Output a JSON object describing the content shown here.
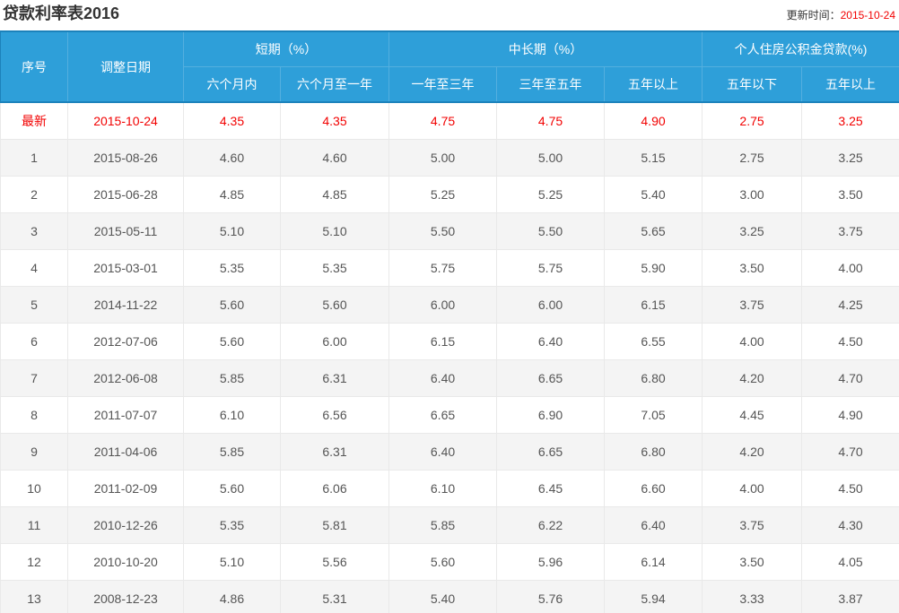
{
  "page": {
    "title": "贷款利率表2016",
    "update_label": "更新时间：",
    "update_date": "2015-10-24"
  },
  "table": {
    "columns": {
      "seq": "序号",
      "date": "调整日期",
      "group_short": "短期（%）",
      "group_mid": "中长期（%）",
      "group_fund": "个人住房公积金贷款(%)",
      "sub": [
        "六个月内",
        "六个月至一年",
        "一年至三年",
        "三年至五年",
        "五年以上",
        "五年以下",
        "五年以上"
      ]
    },
    "rows": [
      {
        "seq": "最新",
        "date": "2015-10-24",
        "values": [
          "4.35",
          "4.35",
          "4.75",
          "4.75",
          "4.90",
          "2.75",
          "3.25"
        ],
        "highlight": true
      },
      {
        "seq": "1",
        "date": "2015-08-26",
        "values": [
          "4.60",
          "4.60",
          "5.00",
          "5.00",
          "5.15",
          "2.75",
          "3.25"
        ]
      },
      {
        "seq": "2",
        "date": "2015-06-28",
        "values": [
          "4.85",
          "4.85",
          "5.25",
          "5.25",
          "5.40",
          "3.00",
          "3.50"
        ]
      },
      {
        "seq": "3",
        "date": "2015-05-11",
        "values": [
          "5.10",
          "5.10",
          "5.50",
          "5.50",
          "5.65",
          "3.25",
          "3.75"
        ]
      },
      {
        "seq": "4",
        "date": "2015-03-01",
        "values": [
          "5.35",
          "5.35",
          "5.75",
          "5.75",
          "5.90",
          "3.50",
          "4.00"
        ]
      },
      {
        "seq": "5",
        "date": "2014-11-22",
        "values": [
          "5.60",
          "5.60",
          "6.00",
          "6.00",
          "6.15",
          "3.75",
          "4.25"
        ]
      },
      {
        "seq": "6",
        "date": "2012-07-06",
        "values": [
          "5.60",
          "6.00",
          "6.15",
          "6.40",
          "6.55",
          "4.00",
          "4.50"
        ]
      },
      {
        "seq": "7",
        "date": "2012-06-08",
        "values": [
          "5.85",
          "6.31",
          "6.40",
          "6.65",
          "6.80",
          "4.20",
          "4.70"
        ]
      },
      {
        "seq": "8",
        "date": "2011-07-07",
        "values": [
          "6.10",
          "6.56",
          "6.65",
          "6.90",
          "7.05",
          "4.45",
          "4.90"
        ]
      },
      {
        "seq": "9",
        "date": "2011-04-06",
        "values": [
          "5.85",
          "6.31",
          "6.40",
          "6.65",
          "6.80",
          "4.20",
          "4.70"
        ]
      },
      {
        "seq": "10",
        "date": "2011-02-09",
        "values": [
          "5.60",
          "6.06",
          "6.10",
          "6.45",
          "6.60",
          "4.00",
          "4.50"
        ]
      },
      {
        "seq": "11",
        "date": "2010-12-26",
        "values": [
          "5.35",
          "5.81",
          "5.85",
          "6.22",
          "6.40",
          "3.75",
          "4.30"
        ]
      },
      {
        "seq": "12",
        "date": "2010-10-20",
        "values": [
          "5.10",
          "5.56",
          "5.60",
          "5.96",
          "6.14",
          "3.50",
          "4.05"
        ]
      },
      {
        "seq": "13",
        "date": "2008-12-23",
        "values": [
          "4.86",
          "5.31",
          "5.40",
          "5.76",
          "5.94",
          "3.33",
          "3.87"
        ]
      }
    ]
  },
  "colors": {
    "header_bg": "#2e9fd9",
    "header_border": "#1c82bb",
    "header_divider": "#54afdf",
    "highlight": "#f20000",
    "row_alt_bg": "#f4f4f4",
    "cell_border": "#e9e9e9",
    "text": "#555555"
  }
}
